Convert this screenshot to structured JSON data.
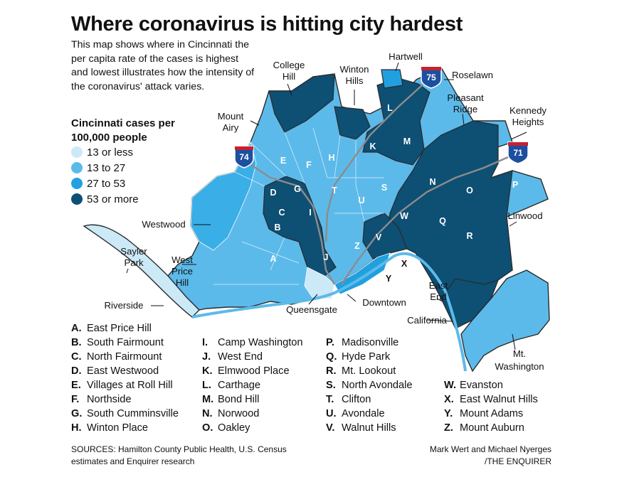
{
  "title": "Where coronavirus is hitting city hardest",
  "intro": "This map shows where in Cincinnati the per capita rate of the cases is highest and lowest illustrates how the intensity of the coronavirus' attack varies.",
  "legend": {
    "title": "Cincinnati cases per 100,000 people",
    "items": [
      {
        "label": "13 or less",
        "color": "#cbe9f7"
      },
      {
        "label": "13 to 27",
        "color": "#5cbaea"
      },
      {
        "label": "27 to 53",
        "color": "#21a0e0"
      },
      {
        "label": "53 or more",
        "color": "#0e4f74"
      }
    ]
  },
  "place_labels": {
    "college_hill": [
      "College",
      "Hill"
    ],
    "winton_hills": [
      "Winton",
      "Hills"
    ],
    "hartwell": "Hartwell",
    "roselawn": "Roselawn",
    "pleasant_ridge": [
      "Pleasant",
      "Ridge"
    ],
    "kennedy_heights": [
      "Kennedy",
      "Heights"
    ],
    "mount_airy": [
      "Mount",
      "Airy"
    ],
    "westwood": "Westwood",
    "sayler_park": [
      "Sayler",
      "Park"
    ],
    "west_price_hill": [
      "West",
      "Price",
      "Hill"
    ],
    "riverside": "Riverside",
    "queensgate": "Queensgate",
    "downtown": "Downtown",
    "linwood": "Linwood",
    "east_end": [
      "East",
      "End"
    ],
    "california": "California",
    "mt_washington": [
      "Mt.",
      "Washington"
    ]
  },
  "highways": [
    "74",
    "75",
    "71"
  ],
  "neighborhood_key": [
    {
      "letter": "A.",
      "name": "East Price Hill",
      "level": 2
    },
    {
      "letter": "B.",
      "name": "South Fairmount",
      "level": 4
    },
    {
      "letter": "C.",
      "name": "North Fairmount",
      "level": 4
    },
    {
      "letter": "D.",
      "name": "East Westwood",
      "level": 4
    },
    {
      "letter": "E.",
      "name": "Villages at Roll Hill",
      "level": 2
    },
    {
      "letter": "F.",
      "name": "Northside",
      "level": 2
    },
    {
      "letter": "G.",
      "name": "South Cumminsville",
      "level": 4
    },
    {
      "letter": "H.",
      "name": "Winton Place",
      "level": 2
    },
    {
      "letter": "I.",
      "name": "Camp Washington",
      "level": 4
    },
    {
      "letter": "J.",
      "name": "West End",
      "level": 4
    },
    {
      "letter": "K.",
      "name": "Elmwood Place",
      "level": 4
    },
    {
      "letter": "L.",
      "name": "Carthage",
      "level": 4
    },
    {
      "letter": "M.",
      "name": "Bond Hill",
      "level": 4
    },
    {
      "letter": "N.",
      "name": "Norwood",
      "level": 4
    },
    {
      "letter": "O.",
      "name": "Oakley",
      "level": 4
    },
    {
      "letter": "P.",
      "name": "Madisonville",
      "level": 2
    },
    {
      "letter": "Q.",
      "name": "Hyde Park",
      "level": 4
    },
    {
      "letter": "R.",
      "name": "Mt. Lookout",
      "level": 4
    },
    {
      "letter": "S.",
      "name": "North Avondale",
      "level": 2
    },
    {
      "letter": "T.",
      "name": "Clifton",
      "level": 2
    },
    {
      "letter": "U.",
      "name": "Avondale",
      "level": 2
    },
    {
      "letter": "V.",
      "name": "Walnut Hills",
      "level": 4
    },
    {
      "letter": "W.",
      "name": "Evanston",
      "level": 4
    },
    {
      "letter": "X.",
      "name": "East Walnut Hills",
      "level": 4
    },
    {
      "letter": "Y.",
      "name": "Mount Adams",
      "level": 2
    },
    {
      "letter": "Z.",
      "name": "Mount Auburn",
      "level": 4
    }
  ],
  "sources": "SOURCES: Hamilton County Public Health, U.S. Census estimates and Enquirer research",
  "credit": {
    "line1": "Mark Wert and Michael Nyerges",
    "line2": "/THE ENQUIRER"
  }
}
